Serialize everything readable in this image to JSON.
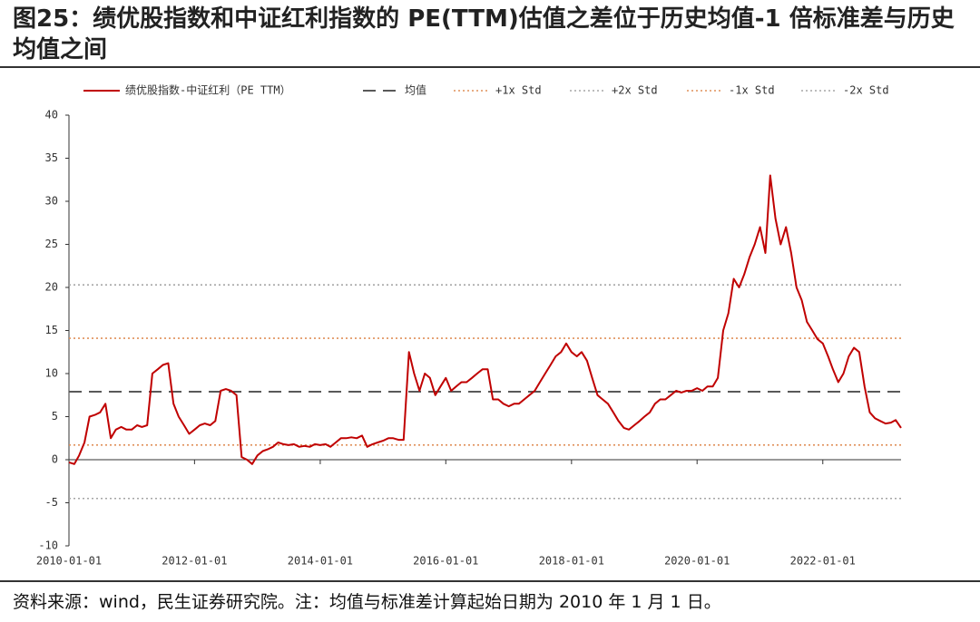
{
  "chart_data": {
    "type": "line",
    "title": "图25：绩优股指数和中证红利指数的 PE(TTM)估值之差位于历史均值-1 倍标准差与历史均值之间",
    "source": "资料来源：wind，民生证券研究院。注：均值与标准差计算起始日期为 2010 年 1 月 1 日。",
    "x": [
      "2010-01-01",
      "2010-02-01",
      "2010-03-01",
      "2010-04-01",
      "2010-05-01",
      "2010-06-01",
      "2010-07-01",
      "2010-08-01",
      "2010-09-01",
      "2010-10-01",
      "2010-11-01",
      "2010-12-01",
      "2011-01-01",
      "2011-02-01",
      "2011-03-01",
      "2011-04-01",
      "2011-05-01",
      "2011-06-01",
      "2011-07-01",
      "2011-08-01",
      "2011-09-01",
      "2011-10-01",
      "2011-11-01",
      "2011-12-01",
      "2012-01-01",
      "2012-02-01",
      "2012-03-01",
      "2012-04-01",
      "2012-05-01",
      "2012-06-01",
      "2012-07-01",
      "2012-08-01",
      "2012-09-01",
      "2012-10-01",
      "2012-11-01",
      "2012-12-01",
      "2013-01-01",
      "2013-02-01",
      "2013-03-01",
      "2013-04-01",
      "2013-05-01",
      "2013-06-01",
      "2013-07-01",
      "2013-08-01",
      "2013-09-01",
      "2013-10-01",
      "2013-11-01",
      "2013-12-01",
      "2014-01-01",
      "2014-02-01",
      "2014-03-01",
      "2014-04-01",
      "2014-05-01",
      "2014-06-01",
      "2014-07-01",
      "2014-08-01",
      "2014-09-01",
      "2014-10-01",
      "2014-11-01",
      "2014-12-01",
      "2015-01-01",
      "2015-02-01",
      "2015-03-01",
      "2015-04-01",
      "2015-05-01",
      "2015-06-01",
      "2015-07-01",
      "2015-08-01",
      "2015-09-01",
      "2015-10-01",
      "2015-11-01",
      "2015-12-01",
      "2016-01-01",
      "2016-02-01",
      "2016-03-01",
      "2016-04-01",
      "2016-05-01",
      "2016-06-01",
      "2016-07-01",
      "2016-08-01",
      "2016-09-01",
      "2016-10-01",
      "2016-11-01",
      "2016-12-01",
      "2017-01-01",
      "2017-02-01",
      "2017-03-01",
      "2017-04-01",
      "2017-05-01",
      "2017-06-01",
      "2017-07-01",
      "2017-08-01",
      "2017-09-01",
      "2017-10-01",
      "2017-11-01",
      "2017-12-01",
      "2018-01-01",
      "2018-02-01",
      "2018-03-01",
      "2018-04-01",
      "2018-05-01",
      "2018-06-01",
      "2018-07-01",
      "2018-08-01",
      "2018-09-01",
      "2018-10-01",
      "2018-11-01",
      "2018-12-01",
      "2019-01-01",
      "2019-02-01",
      "2019-03-01",
      "2019-04-01",
      "2019-05-01",
      "2019-06-01",
      "2019-07-01",
      "2019-08-01",
      "2019-09-01",
      "2019-10-01",
      "2019-11-01",
      "2019-12-01",
      "2020-01-01",
      "2020-02-01",
      "2020-03-01",
      "2020-04-01",
      "2020-05-01",
      "2020-06-01",
      "2020-07-01",
      "2020-08-01",
      "2020-09-01",
      "2020-10-01",
      "2020-11-01",
      "2020-12-01",
      "2021-01-01",
      "2021-02-01",
      "2021-03-01",
      "2021-04-01",
      "2021-05-01",
      "2021-06-01",
      "2021-07-01",
      "2021-08-01",
      "2021-09-01",
      "2021-10-01",
      "2021-11-01",
      "2021-12-01",
      "2022-01-01",
      "2022-02-01",
      "2022-03-01",
      "2022-04-01",
      "2022-05-01",
      "2022-06-01",
      "2022-07-01",
      "2022-08-01",
      "2022-09-01",
      "2022-10-01",
      "2022-11-01",
      "2022-12-01",
      "2023-01-01",
      "2023-02-01",
      "2023-03-01",
      "2023-04-01"
    ],
    "series": [
      {
        "name": "绩优股指数-中证红利（PE TTM）",
        "color": "#c00000",
        "values": [
          -0.3,
          -0.5,
          0.5,
          2.0,
          5.0,
          5.2,
          5.5,
          6.5,
          2.5,
          3.5,
          3.8,
          3.5,
          3.5,
          4,
          3.8,
          4,
          10,
          10.5,
          11,
          11.2,
          6.5,
          5,
          4,
          3,
          3.5,
          4,
          4.2,
          4,
          4.5,
          8,
          8.2,
          8,
          7.5,
          0.3,
          0,
          -0.5,
          0.5,
          1,
          1.2,
          1.5,
          2,
          1.8,
          1.7,
          1.8,
          1.5,
          1.6,
          1.5,
          1.8,
          1.7,
          1.8,
          1.5,
          2,
          2.5,
          2.5,
          2.6,
          2.5,
          2.8,
          1.5,
          1.8,
          2,
          2.2,
          2.5,
          2.5,
          2.3,
          2.3,
          12.5,
          10,
          8,
          10,
          9.5,
          7.5,
          8.5,
          9.5,
          8,
          8.5,
          9,
          9,
          9.5,
          10,
          10.5,
          10.5,
          7,
          7,
          6.5,
          6.2,
          6.5,
          6.5,
          7,
          7.5,
          8,
          9,
          10,
          11,
          12,
          12.5,
          13.5,
          12.5,
          12,
          12.5,
          11.5,
          9.5,
          7.5,
          7,
          6.5,
          5.5,
          4.5,
          3.7,
          3.5,
          4,
          4.5,
          5,
          5.5,
          6.5,
          7,
          7,
          7.5,
          8,
          7.8,
          8,
          8,
          8.3,
          8,
          8.5,
          8.5,
          9.5,
          15,
          17,
          21,
          20,
          21.5,
          23.5,
          25,
          27,
          24,
          33,
          28,
          25,
          27,
          24,
          20,
          18.5,
          16,
          15,
          14,
          13.5,
          12,
          10.5,
          9,
          10,
          12,
          13,
          12.5,
          8.5,
          5.5,
          4.8,
          4.5,
          4.2,
          4.3,
          4.6,
          3.7
        ]
      }
    ],
    "reference_lines": [
      {
        "name": "均值",
        "value": 7.9,
        "color": "#595959",
        "style": "dashed"
      },
      {
        "name": "+1x Std",
        "value": 14.1,
        "color": "#e0905a",
        "style": "dotted"
      },
      {
        "name": "+2x Std",
        "value": 20.3,
        "color": "#a6a6a6",
        "style": "dotted"
      },
      {
        "name": "-1x Std",
        "value": 1.7,
        "color": "#e0905a",
        "style": "dotted"
      },
      {
        "name": "-2x Std",
        "value": -4.5,
        "color": "#a6a6a6",
        "style": "dotted"
      }
    ],
    "xlim": [
      "2010-01-01",
      "2023-04-01"
    ],
    "xticks": [
      "2010-01-01",
      "2012-01-01",
      "2014-01-01",
      "2016-01-01",
      "2018-01-01",
      "2020-01-01",
      "2022-01-01"
    ],
    "ylim": [
      -10,
      40
    ],
    "yticks": [
      -10,
      -5,
      0,
      5,
      10,
      15,
      20,
      25,
      30,
      35,
      40
    ],
    "legend": "top"
  }
}
